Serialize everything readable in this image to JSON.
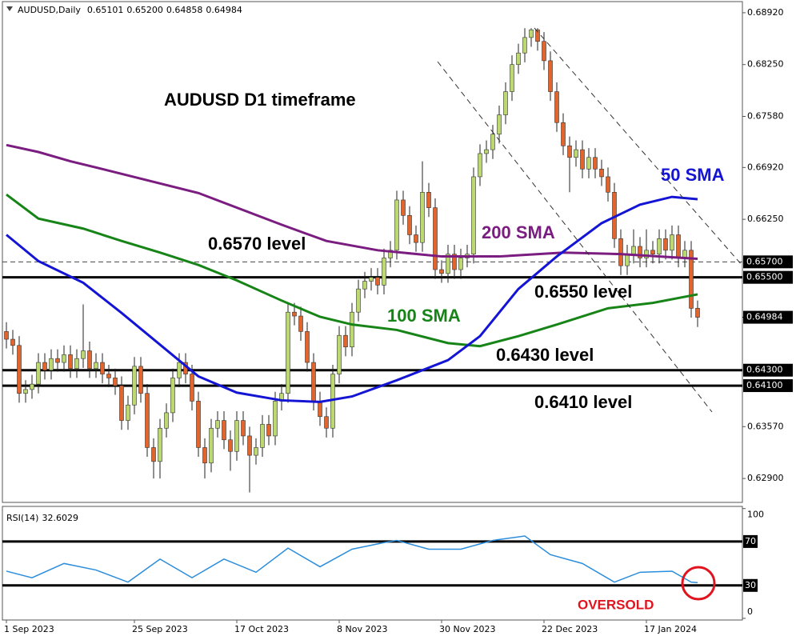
{
  "chart_data": {
    "type": "candlestick",
    "title": "AUDUSD,Daily",
    "title_values": [
      0.65101,
      {
        "value": 0.652,
        "label": "0.65200"
      },
      0.64858,
      0.64984
    ],
    "annotation": "AUDUSD D1 timeframe",
    "categories": [
      "1 Sep 2023",
      null,
      null,
      null,
      null,
      null,
      null,
      null,
      null,
      null,
      null,
      null,
      null,
      null,
      null,
      null,
      null,
      null,
      null,
      null,
      "25 Sep 2023",
      null,
      null,
      null,
      null,
      null,
      null,
      null,
      null,
      null,
      null,
      null,
      null,
      null,
      null,
      null,
      "17 Oct 2023",
      null,
      null,
      null,
      null,
      null,
      null,
      null,
      null,
      null,
      null,
      null,
      null,
      null,
      null,
      null,
      "8 Nov 2023",
      null,
      null,
      null,
      null,
      null,
      null,
      null,
      null,
      null,
      null,
      null,
      null,
      null,
      null,
      null,
      "30 Nov 2023",
      null,
      null,
      null,
      null,
      null,
      null,
      null,
      null,
      null,
      null,
      null,
      null,
      null,
      null,
      null,
      "22 Dec 2023",
      null,
      null,
      null,
      null,
      null,
      null,
      null,
      null,
      null,
      null,
      null,
      null,
      null,
      null,
      null,
      "17 Jan 2024",
      null,
      null,
      null,
      null,
      null,
      null,
      null,
      null
    ],
    "candles": [
      [
        0.648,
        0.6492,
        0.6458,
        0.647
      ],
      [
        0.647,
        0.6482,
        0.645,
        0.6462
      ],
      [
        0.6462,
        0.6474,
        0.6388,
        0.64
      ],
      [
        0.64,
        0.6417,
        0.6388,
        0.6405
      ],
      [
        0.6405,
        0.6424,
        0.6393,
        0.6412
      ],
      [
        0.6412,
        0.6452,
        0.64,
        0.644
      ],
      [
        0.644,
        0.6452,
        0.6418,
        0.643
      ],
      [
        0.643,
        0.6457,
        0.6418,
        0.6445
      ],
      [
        0.6445,
        0.6457,
        0.6428,
        0.644
      ],
      [
        0.644,
        0.6462,
        0.6428,
        0.645
      ],
      [
        0.645,
        0.6462,
        0.642,
        0.6432
      ],
      [
        0.6432,
        0.6457,
        0.642,
        0.6445
      ],
      [
        0.6445,
        0.6515,
        0.6433,
        0.6455
      ],
      [
        0.6455,
        0.6467,
        0.642,
        0.6432
      ],
      [
        0.6432,
        0.6452,
        0.642,
        0.644
      ],
      [
        0.644,
        0.6452,
        0.6413,
        0.6425
      ],
      [
        0.6425,
        0.6437,
        0.6408,
        0.642
      ],
      [
        0.642,
        0.6432,
        0.6398,
        0.641
      ],
      [
        0.641,
        0.6422,
        0.6353,
        0.6365
      ],
      [
        0.6365,
        0.6397,
        0.6353,
        0.6385
      ],
      [
        0.6385,
        0.6447,
        0.6373,
        0.6435
      ],
      [
        0.6435,
        0.6447,
        0.6388,
        0.64
      ],
      [
        0.64,
        0.6412,
        0.6318,
        0.633
      ],
      [
        0.633,
        0.6342,
        0.629,
        0.6312
      ],
      [
        0.6312,
        0.6367,
        0.629,
        0.6355
      ],
      [
        0.6355,
        0.6387,
        0.6343,
        0.6375
      ],
      [
        0.6375,
        0.6432,
        0.6363,
        0.642
      ],
      [
        0.642,
        0.6452,
        0.6408,
        0.644
      ],
      [
        0.644,
        0.6452,
        0.6413,
        0.6425
      ],
      [
        0.6425,
        0.6437,
        0.6378,
        0.639
      ],
      [
        0.639,
        0.6402,
        0.6318,
        0.633
      ],
      [
        0.633,
        0.6342,
        0.629,
        0.631
      ],
      [
        0.631,
        0.6367,
        0.6298,
        0.6355
      ],
      [
        0.6355,
        0.6377,
        0.6343,
        0.6365
      ],
      [
        0.6365,
        0.6377,
        0.6328,
        0.634
      ],
      [
        0.634,
        0.6352,
        0.63,
        0.6325
      ],
      [
        0.6325,
        0.6377,
        0.6313,
        0.6365
      ],
      [
        0.6365,
        0.6377,
        0.6333,
        0.6345
      ],
      [
        0.6345,
        0.6357,
        0.6272,
        0.632
      ],
      [
        0.632,
        0.6342,
        0.6308,
        0.633
      ],
      [
        0.633,
        0.6372,
        0.6318,
        0.636
      ],
      [
        0.636,
        0.6372,
        0.6333,
        0.6345
      ],
      [
        0.6345,
        0.6402,
        0.6333,
        0.639
      ],
      [
        0.639,
        0.6412,
        0.6378,
        0.64
      ],
      [
        0.64,
        0.6517,
        0.6388,
        0.6505
      ],
      [
        0.6505,
        0.6517,
        0.6488,
        0.65
      ],
      [
        0.65,
        0.6512,
        0.6468,
        0.648
      ],
      [
        0.648,
        0.6492,
        0.6428,
        0.644
      ],
      [
        0.644,
        0.6452,
        0.6378,
        0.639
      ],
      [
        0.639,
        0.6402,
        0.6358,
        0.637
      ],
      [
        0.637,
        0.6382,
        0.6343,
        0.6355
      ],
      [
        0.6355,
        0.6437,
        0.6343,
        0.6425
      ],
      [
        0.6425,
        0.6487,
        0.6413,
        0.6475
      ],
      [
        0.6475,
        0.6487,
        0.6448,
        0.646
      ],
      [
        0.646,
        0.6517,
        0.6448,
        0.6505
      ],
      [
        0.6505,
        0.6547,
        0.6493,
        0.6535
      ],
      [
        0.6535,
        0.6557,
        0.6523,
        0.6545
      ],
      [
        0.6545,
        0.6562,
        0.6533,
        0.655
      ],
      [
        0.655,
        0.6562,
        0.6528,
        0.654
      ],
      [
        0.654,
        0.6587,
        0.6528,
        0.6575
      ],
      [
        0.6575,
        0.6597,
        0.6563,
        0.6585
      ],
      [
        0.6585,
        0.6662,
        0.6573,
        0.665
      ],
      [
        0.665,
        0.6662,
        0.6618,
        0.663
      ],
      [
        0.663,
        0.6642,
        0.6593,
        0.6605
      ],
      [
        0.6605,
        0.6617,
        0.6583,
        0.6595
      ],
      [
        0.6595,
        0.67,
        0.6583,
        0.666
      ],
      [
        0.666,
        0.6672,
        0.6628,
        0.664
      ],
      [
        0.664,
        0.6652,
        0.6548,
        0.656
      ],
      [
        0.656,
        0.6572,
        0.6543,
        0.6555
      ],
      [
        0.6555,
        0.6592,
        0.6543,
        0.658
      ],
      [
        0.658,
        0.6592,
        0.6548,
        0.656
      ],
      [
        0.656,
        0.6587,
        0.6548,
        0.6575
      ],
      [
        0.6575,
        0.6592,
        0.6563,
        0.658
      ],
      [
        0.658,
        0.6692,
        0.6568,
        0.668
      ],
      [
        0.668,
        0.6722,
        0.6668,
        0.671
      ],
      [
        0.671,
        0.6727,
        0.6698,
        0.6715
      ],
      [
        0.6715,
        0.6747,
        0.6703,
        0.6735
      ],
      [
        0.6735,
        0.6772,
        0.6723,
        0.676
      ],
      [
        0.676,
        0.6802,
        0.6748,
        0.679
      ],
      [
        0.679,
        0.6837,
        0.6778,
        0.6825
      ],
      [
        0.6825,
        0.6852,
        0.6813,
        0.684
      ],
      [
        0.684,
        0.6872,
        0.6828,
        0.686
      ],
      [
        0.686,
        0.6872,
        0.6848,
        0.687
      ],
      [
        0.687,
        0.6872,
        0.6843,
        0.6855
      ],
      [
        0.6855,
        0.6867,
        0.6818,
        0.683
      ],
      [
        0.683,
        0.6842,
        0.6778,
        0.679
      ],
      [
        0.679,
        0.6802,
        0.6738,
        0.675
      ],
      [
        0.675,
        0.6762,
        0.6708,
        0.672
      ],
      [
        0.672,
        0.6732,
        0.666,
        0.6705
      ],
      [
        0.6705,
        0.6727,
        0.6693,
        0.6715
      ],
      [
        0.6715,
        0.6727,
        0.6678,
        0.669
      ],
      [
        0.669,
        0.6717,
        0.6678,
        0.6705
      ],
      [
        0.6705,
        0.6717,
        0.6678,
        0.669
      ],
      [
        0.669,
        0.6702,
        0.6668,
        0.668
      ],
      [
        0.668,
        0.6692,
        0.6648,
        0.666
      ],
      [
        0.666,
        0.6672,
        0.6588,
        0.66
      ],
      [
        0.66,
        0.6612,
        0.6553,
        0.6565
      ],
      [
        0.6565,
        0.6592,
        0.6553,
        0.658
      ],
      [
        0.658,
        0.6612,
        0.6568,
        0.659
      ],
      [
        0.659,
        0.6602,
        0.6563,
        0.6575
      ],
      [
        0.6575,
        0.6612,
        0.6563,
        0.6585
      ],
      [
        0.6585,
        0.6597,
        0.6568,
        0.658
      ],
      [
        0.658,
        0.6612,
        0.6568,
        0.66
      ],
      [
        0.66,
        0.6612,
        0.6573,
        0.6585
      ],
      [
        0.6585,
        0.6617,
        0.6573,
        0.6605
      ],
      [
        0.6605,
        0.6617,
        0.6563,
        0.6575
      ],
      [
        0.6575,
        0.6597,
        0.6563,
        0.6585
      ],
      [
        0.6585,
        0.6597,
        0.6498,
        0.651
      ],
      [
        0.65101,
        0.652,
        0.64858,
        0.64984
      ]
    ],
    "colors": {
      "up": "#bcd870",
      "down": "#e2652d",
      "wick": "#222222"
    },
    "ylim": [
      0.62591,
      0.69064
    ],
    "yticks": [
      {
        "value": 0.6892,
        "label": "0.68920"
      },
      {
        "value": 0.6825,
        "label": "0.68250"
      },
      {
        "value": 0.6758,
        "label": "0.67580"
      },
      {
        "value": 0.6692,
        "label": "0.66920"
      },
      {
        "value": 0.6625,
        "label": "0.66250"
      },
      {
        "value": 0.6357,
        "label": "0.63570"
      },
      {
        "value": 0.629,
        "label": "0.62900"
      }
    ],
    "levels": [
      {
        "value": 0.657,
        "label": "0.65700",
        "annotation": "0.6570 level",
        "style": "dashed"
      },
      {
        "value": 0.655,
        "label": "0.65500",
        "annotation": "0.6550 level",
        "style": "solid"
      },
      {
        "value": 0.643,
        "label": "0.64300",
        "annotation": "0.6430 level",
        "style": "solid"
      },
      {
        "value": 0.641,
        "label": "0.64100",
        "annotation": "0.6410 level",
        "style": "solid"
      }
    ],
    "last_price": 0.64984,
    "series": [
      {
        "name": "200 SMA",
        "color": "#7a1c80",
        "x": [
          0,
          5,
          10,
          15,
          30,
          43,
          50,
          58,
          68,
          77,
          87,
          96,
          108
        ],
        "values": [
          0.6721,
          0.6712,
          0.67,
          0.669,
          0.6659,
          0.6618,
          0.6597,
          0.6585,
          0.6577,
          0.6577,
          0.6582,
          0.658,
          0.6574
        ]
      },
      {
        "name": "100 SMA",
        "color": "#178417",
        "x": [
          0,
          5,
          12,
          18,
          24,
          30,
          36,
          43,
          49,
          54,
          61,
          69,
          74,
          80,
          86,
          94,
          101,
          108
        ],
        "values": [
          0.6657,
          0.6626,
          0.6613,
          0.6597,
          0.6582,
          0.6566,
          0.6546,
          0.652,
          0.6499,
          0.6489,
          0.6482,
          0.6465,
          0.6461,
          0.6474,
          0.6489,
          0.651,
          0.6517,
          0.6528
        ]
      },
      {
        "name": "50 SMA",
        "color": "#1414d4",
        "x": [
          0,
          5,
          12,
          18,
          24,
          30,
          36,
          43,
          49,
          54,
          61,
          69,
          74,
          80,
          86,
          93,
          99,
          104,
          108
        ],
        "values": [
          0.6605,
          0.6571,
          0.6543,
          0.6504,
          0.6463,
          0.6422,
          0.6401,
          0.6391,
          0.6389,
          0.6396,
          0.6417,
          0.6443,
          0.6474,
          0.6535,
          0.6577,
          0.662,
          0.6644,
          0.6654,
          0.6651
        ]
      }
    ],
    "rsi": {
      "type": "line",
      "title": "RSI(14)",
      "value": 32.6029,
      "color": "#2b8ddb",
      "ylim": [
        -1.5,
        102
      ],
      "yticks": [
        100,
        0
      ],
      "levels": [
        70,
        30
      ],
      "annotation": "OVERSOLD",
      "x": [
        0,
        4,
        9,
        14,
        19,
        24,
        29,
        34,
        39,
        44,
        49,
        54,
        59,
        61,
        66,
        71,
        76,
        81,
        85,
        90,
        95,
        99,
        104,
        107,
        108
      ],
      "values": [
        43,
        37,
        50,
        44,
        33,
        54,
        37,
        54,
        42,
        64,
        47,
        63,
        69,
        71,
        63,
        63,
        71,
        75,
        58,
        50,
        33,
        42,
        43,
        33,
        32.6029
      ]
    }
  }
}
